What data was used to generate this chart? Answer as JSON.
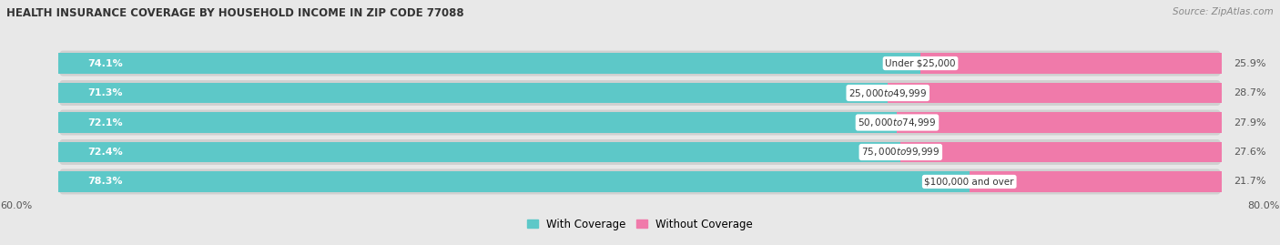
{
  "title": "HEALTH INSURANCE COVERAGE BY HOUSEHOLD INCOME IN ZIP CODE 77088",
  "source": "Source: ZipAtlas.com",
  "categories": [
    "Under $25,000",
    "$25,000 to $49,999",
    "$50,000 to $74,999",
    "$75,000 to $99,999",
    "$100,000 and over"
  ],
  "with_coverage": [
    74.1,
    71.3,
    72.1,
    72.4,
    78.3
  ],
  "without_coverage": [
    25.9,
    28.7,
    27.9,
    27.6,
    21.7
  ],
  "teal_color": "#5DC8C8",
  "pink_color": "#F07AAA",
  "background_color": "#e8e8e8",
  "bar_bg_color": "#d8d8d8",
  "pill_bg_color": "#d0d0d0",
  "axis_label_left": "60.0%",
  "axis_label_right": "80.0%",
  "legend_teal": "With Coverage",
  "legend_pink": "Without Coverage",
  "bar_height": 0.7,
  "total_width": 100.0,
  "xlim_left": -5.0,
  "xlim_right": 105.0
}
